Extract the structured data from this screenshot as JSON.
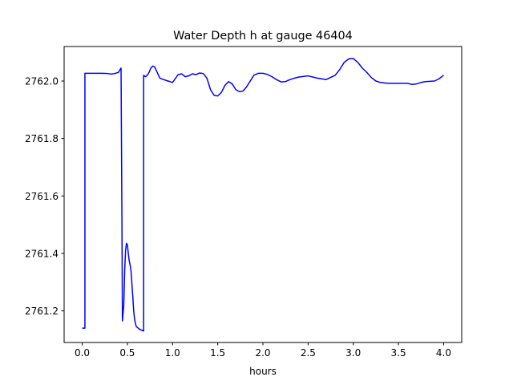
{
  "chart_data": {
    "type": "line",
    "title": "Water Depth h at gauge 46404",
    "xlabel": "hours",
    "ylabel": "",
    "xlim": [
      -0.2,
      4.2
    ],
    "ylim": [
      2761.09,
      2762.12
    ],
    "grid": false,
    "x_ticks": [
      0.0,
      0.5,
      1.0,
      1.5,
      2.0,
      2.5,
      3.0,
      3.5,
      4.0
    ],
    "x_tick_labels": [
      "0.0",
      "0.5",
      "1.0",
      "1.5",
      "2.0",
      "2.5",
      "3.0",
      "3.5",
      "4.0"
    ],
    "y_ticks": [
      2761.2,
      2761.4,
      2761.6,
      2761.8,
      2762.0
    ],
    "y_tick_labels": [
      "2761.2",
      "2761.4",
      "2761.6",
      "2761.8",
      "2762.0"
    ],
    "series": [
      {
        "color": "#0000ff",
        "x": [
          0.0,
          0.03,
          0.03,
          0.1,
          0.2,
          0.28,
          0.32,
          0.36,
          0.4,
          0.43,
          0.44,
          0.445,
          0.46,
          0.47,
          0.48,
          0.49,
          0.5,
          0.51,
          0.52,
          0.53,
          0.54,
          0.56,
          0.57,
          0.58,
          0.59,
          0.6,
          0.62,
          0.64,
          0.66,
          0.675,
          0.68,
          0.68,
          0.7,
          0.72,
          0.74,
          0.76,
          0.78,
          0.8,
          0.83,
          0.86,
          0.9,
          0.95,
          1.0,
          1.03,
          1.06,
          1.1,
          1.14,
          1.18,
          1.22,
          1.26,
          1.3,
          1.34,
          1.38,
          1.42,
          1.46,
          1.5,
          1.54,
          1.58,
          1.62,
          1.66,
          1.7,
          1.74,
          1.78,
          1.82,
          1.86,
          1.9,
          1.95,
          2.0,
          2.05,
          2.1,
          2.15,
          2.2,
          2.25,
          2.3,
          2.35,
          2.4,
          2.5,
          2.6,
          2.7,
          2.8,
          2.85,
          2.9,
          2.95,
          3.0,
          3.05,
          3.1,
          3.15,
          3.2,
          3.25,
          3.3,
          3.35,
          3.4,
          3.5,
          3.6,
          3.65,
          3.7,
          3.75,
          3.8,
          3.9,
          3.95,
          4.0
        ],
        "y": [
          2761.14,
          2761.14,
          2762.027,
          2762.027,
          2762.027,
          2762.026,
          2762.024,
          2762.026,
          2762.03,
          2762.045,
          2761.5,
          2761.165,
          2761.22,
          2761.34,
          2761.41,
          2761.435,
          2761.43,
          2761.4,
          2761.375,
          2761.36,
          2761.34,
          2761.25,
          2761.2,
          2761.17,
          2761.155,
          2761.145,
          2761.14,
          2761.135,
          2761.133,
          2761.13,
          2761.13,
          2762.02,
          2762.015,
          2762.02,
          2762.03,
          2762.045,
          2762.052,
          2762.05,
          2762.03,
          2762.01,
          2762.005,
          2762.0,
          2761.995,
          2762.008,
          2762.022,
          2762.025,
          2762.015,
          2762.018,
          2762.025,
          2762.022,
          2762.028,
          2762.026,
          2762.01,
          2761.97,
          2761.95,
          2761.948,
          2761.96,
          2761.985,
          2761.998,
          2761.99,
          2761.97,
          2761.963,
          2761.965,
          2761.98,
          2762.0,
          2762.02,
          2762.027,
          2762.027,
          2762.023,
          2762.015,
          2762.005,
          2761.997,
          2761.998,
          2762.005,
          2762.01,
          2762.014,
          2762.018,
          2762.01,
          2762.005,
          2762.02,
          2762.04,
          2762.065,
          2762.077,
          2762.078,
          2762.065,
          2762.045,
          2762.03,
          2762.012,
          2762.0,
          2761.995,
          2761.993,
          2761.992,
          2761.992,
          2761.992,
          2761.988,
          2761.99,
          2761.995,
          2761.998,
          2762.0,
          2762.008,
          2762.02
        ]
      }
    ]
  }
}
